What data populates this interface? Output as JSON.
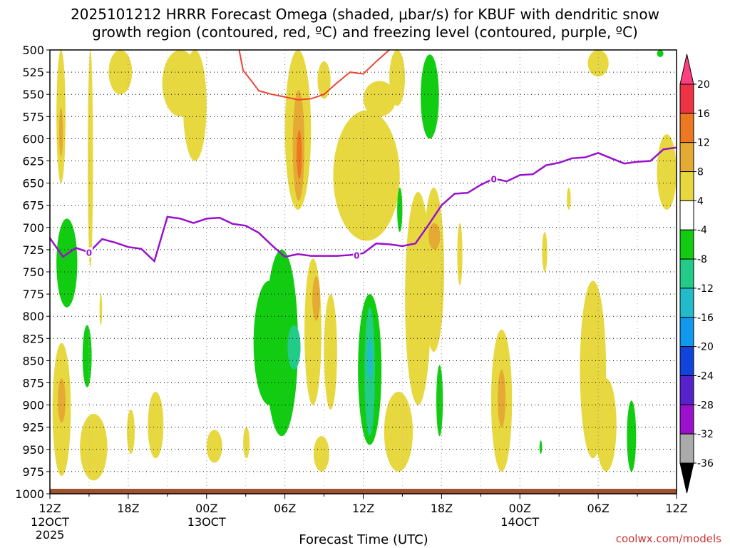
{
  "chart_data": {
    "type": "heatmap",
    "title_line1": "2025101212 HRRR Forecast Omega (shaded, μbar/s) for KBUF with dendritic snow",
    "title_line2": "growth region (contoured, red, ºC) and freezing level (contoured, purple, ºC)",
    "xlabel": "Forecast Time (UTC)",
    "credit": "coolwx.com/models",
    "x_range_hours": [
      0,
      48
    ],
    "y_range_hpa": [
      500,
      1000
    ],
    "y_ticks": [
      "500",
      "525",
      "550",
      "575",
      "600",
      "625",
      "650",
      "675",
      "700",
      "725",
      "750",
      "775",
      "800",
      "825",
      "850",
      "875",
      "900",
      "925",
      "950",
      "975",
      "1000"
    ],
    "x_ticks": [
      {
        "h": 0,
        "label": "12Z",
        "sub1": "12OCT",
        "sub2": "2025"
      },
      {
        "h": 6,
        "label": "18Z",
        "sub1": "",
        "sub2": ""
      },
      {
        "h": 12,
        "label": "00Z",
        "sub1": "13OCT",
        "sub2": ""
      },
      {
        "h": 18,
        "label": "06Z",
        "sub1": "",
        "sub2": ""
      },
      {
        "h": 24,
        "label": "12Z",
        "sub1": "",
        "sub2": ""
      },
      {
        "h": 30,
        "label": "18Z",
        "sub1": "",
        "sub2": ""
      },
      {
        "h": 36,
        "label": "00Z",
        "sub1": "14OCT",
        "sub2": ""
      },
      {
        "h": 42,
        "label": "06Z",
        "sub1": "",
        "sub2": ""
      },
      {
        "h": 48,
        "label": "12Z",
        "sub1": "",
        "sub2": ""
      }
    ],
    "colorbar": {
      "labels": [
        "20",
        "16",
        "12",
        "8",
        "4",
        "-4",
        "-8",
        "-12",
        "-16",
        "-20",
        "-24",
        "-28",
        "-32",
        "-36"
      ],
      "colors": [
        "#ff4080",
        "#ee3344",
        "#ee7722",
        "#e5aa33",
        "#e8d840",
        "#ffffff",
        "#11cc11",
        "#22cc88",
        "#22bbcc",
        "#1199ee",
        "#1144dd",
        "#5522cc",
        "#9911cc",
        "#aaaaaa",
        "#000000"
      ]
    },
    "colors": {
      "pos4": "#e8d840",
      "pos8": "#e5aa33",
      "pos12": "#ee7722",
      "neg4": "#11cc11",
      "neg8": "#22cc88",
      "neg12": "#22bbcc",
      "dgz": "#ee4433",
      "freezing": "#9911cc",
      "ground": "#a0522d"
    },
    "freezing_level_label": "0",
    "freezing_level": [
      {
        "h": 0,
        "p": 712
      },
      {
        "h": 1,
        "p": 733
      },
      {
        "h": 2,
        "p": 723
      },
      {
        "h": 3,
        "p": 728
      },
      {
        "h": 4,
        "p": 713
      },
      {
        "h": 5,
        "p": 717
      },
      {
        "h": 6,
        "p": 722
      },
      {
        "h": 7,
        "p": 724
      },
      {
        "h": 8,
        "p": 738
      },
      {
        "h": 9,
        "p": 688
      },
      {
        "h": 10,
        "p": 690
      },
      {
        "h": 11,
        "p": 695
      },
      {
        "h": 12,
        "p": 690
      },
      {
        "h": 13,
        "p": 689
      },
      {
        "h": 14,
        "p": 696
      },
      {
        "h": 15,
        "p": 698
      },
      {
        "h": 16,
        "p": 706
      },
      {
        "h": 17,
        "p": 720
      },
      {
        "h": 18,
        "p": 733
      },
      {
        "h": 19,
        "p": 730
      },
      {
        "h": 20,
        "p": 732
      },
      {
        "h": 21,
        "p": 732
      },
      {
        "h": 22,
        "p": 732
      },
      {
        "h": 23,
        "p": 731
      },
      {
        "h": 24,
        "p": 729
      },
      {
        "h": 25,
        "p": 718
      },
      {
        "h": 26,
        "p": 719
      },
      {
        "h": 27,
        "p": 721
      },
      {
        "h": 28,
        "p": 718
      },
      {
        "h": 29,
        "p": 697
      },
      {
        "h": 30,
        "p": 675
      },
      {
        "h": 31,
        "p": 662
      },
      {
        "h": 32,
        "p": 661
      },
      {
        "h": 33,
        "p": 652
      },
      {
        "h": 34,
        "p": 645
      },
      {
        "h": 35,
        "p": 648
      },
      {
        "h": 36,
        "p": 641
      },
      {
        "h": 37,
        "p": 640
      },
      {
        "h": 38,
        "p": 630
      },
      {
        "h": 39,
        "p": 627
      },
      {
        "h": 40,
        "p": 622
      },
      {
        "h": 41,
        "p": 621
      },
      {
        "h": 42,
        "p": 616
      },
      {
        "h": 43,
        "p": 622
      },
      {
        "h": 44,
        "p": 628
      },
      {
        "h": 45,
        "p": 626
      },
      {
        "h": 46,
        "p": 625
      },
      {
        "h": 47,
        "p": 612
      },
      {
        "h": 48,
        "p": 610
      }
    ],
    "dgz_contour": [
      {
        "h": 14.5,
        "p": 500
      },
      {
        "h": 14.8,
        "p": 523
      },
      {
        "h": 15.5,
        "p": 536
      },
      {
        "h": 16.0,
        "p": 546
      },
      {
        "h": 17.0,
        "p": 550
      },
      {
        "h": 18.0,
        "p": 553
      },
      {
        "h": 19.0,
        "p": 556
      },
      {
        "h": 20.0,
        "p": 555
      },
      {
        "h": 21.0,
        "p": 550
      },
      {
        "h": 22.0,
        "p": 537
      },
      {
        "h": 23.0,
        "p": 525
      },
      {
        "h": 24.0,
        "p": 527
      },
      {
        "h": 25.0,
        "p": 513
      },
      {
        "h": 26.0,
        "p": 500
      }
    ],
    "omega_regions": [
      {
        "level": 4,
        "h": [
          0.5,
          1.2
        ],
        "p": [
          500,
          650
        ]
      },
      {
        "level": 8,
        "h": [
          0.7,
          1.0
        ],
        "p": [
          565,
          620
        ]
      },
      {
        "level": 4,
        "h": [
          2.9,
          3.3
        ],
        "p": [
          500,
          745
        ]
      },
      {
        "level": 4,
        "h": [
          4.5,
          6.3
        ],
        "p": [
          500,
          550
        ]
      },
      {
        "level": 4,
        "h": [
          8.6,
          11.4
        ],
        "p": [
          500,
          575
        ]
      },
      {
        "level": 4,
        "h": [
          10.2,
          12.0
        ],
        "p": [
          500,
          625
        ]
      },
      {
        "level": 4,
        "h": [
          18.0,
          20.0
        ],
        "p": [
          500,
          680
        ]
      },
      {
        "level": 8,
        "h": [
          18.6,
          19.5
        ],
        "p": [
          545,
          670
        ]
      },
      {
        "level": 12,
        "h": [
          18.9,
          19.3
        ],
        "p": [
          590,
          645
        ]
      },
      {
        "level": 4,
        "h": [
          20.5,
          21.5
        ],
        "p": [
          513,
          555
        ]
      },
      {
        "level": 4,
        "h": [
          21.7,
          26.8
        ],
        "p": [
          568,
          715
        ]
      },
      {
        "level": 4,
        "h": [
          24.0,
          26.5
        ],
        "p": [
          535,
          575
        ]
      },
      {
        "level": 4,
        "h": [
          26.0,
          27.2
        ],
        "p": [
          500,
          563
        ]
      },
      {
        "level": -4,
        "h": [
          28.4,
          29.8
        ],
        "p": [
          505,
          600
        ]
      },
      {
        "level": -4,
        "h": [
          26.6,
          27.0
        ],
        "p": [
          655,
          705
        ]
      },
      {
        "level": 4,
        "h": [
          28.6,
          30.2
        ],
        "p": [
          655,
          840
        ]
      },
      {
        "level": 8,
        "h": [
          29.0,
          29.9
        ],
        "p": [
          695,
          725
        ]
      },
      {
        "level": 4,
        "h": [
          41.2,
          42.8
        ],
        "p": [
          500,
          530
        ]
      },
      {
        "level": -4,
        "h": [
          46.5,
          47.0
        ],
        "p": [
          500,
          508
        ]
      },
      {
        "level": 4,
        "h": [
          46.5,
          48.0
        ],
        "p": [
          595,
          680
        ]
      },
      {
        "level": 4,
        "h": [
          39.6,
          39.9
        ],
        "p": [
          655,
          680
        ]
      },
      {
        "level": -4,
        "h": [
          0.5,
          2.1
        ],
        "p": [
          690,
          790
        ]
      },
      {
        "level": 4,
        "h": [
          3.8,
          4.0
        ],
        "p": [
          775,
          810
        ]
      },
      {
        "level": 4,
        "h": [
          0.2,
          1.6
        ],
        "p": [
          830,
          980
        ]
      },
      {
        "level": 8,
        "h": [
          0.6,
          1.2
        ],
        "p": [
          870,
          920
        ]
      },
      {
        "level": -4,
        "h": [
          2.5,
          3.2
        ],
        "p": [
          810,
          880
        ]
      },
      {
        "level": 4,
        "h": [
          2.3,
          4.4
        ],
        "p": [
          910,
          985
        ]
      },
      {
        "level": 4,
        "h": [
          5.9,
          6.5
        ],
        "p": [
          905,
          955
        ]
      },
      {
        "level": 4,
        "h": [
          7.5,
          8.7
        ],
        "p": [
          885,
          960
        ]
      },
      {
        "level": 4,
        "h": [
          12.0,
          13.2
        ],
        "p": [
          928,
          965
        ]
      },
      {
        "level": 4,
        "h": [
          14.8,
          15.3
        ],
        "p": [
          925,
          960
        ]
      },
      {
        "level": -4,
        "h": [
          15.6,
          18.0
        ],
        "p": [
          760,
          900
        ]
      },
      {
        "level": -4,
        "h": [
          16.5,
          19.0
        ],
        "p": [
          725,
          935
        ]
      },
      {
        "level": -8,
        "h": [
          18.2,
          19.2
        ],
        "p": [
          810,
          860
        ]
      },
      {
        "level": 4,
        "h": [
          19.5,
          20.8
        ],
        "p": [
          735,
          900
        ]
      },
      {
        "level": 8,
        "h": [
          20.1,
          20.7
        ],
        "p": [
          755,
          805
        ]
      },
      {
        "level": 4,
        "h": [
          20.2,
          21.4
        ],
        "p": [
          935,
          975
        ]
      },
      {
        "level": 4,
        "h": [
          21.0,
          22.0
        ],
        "p": [
          775,
          905
        ]
      },
      {
        "level": -4,
        "h": [
          23.6,
          25.4
        ],
        "p": [
          775,
          945
        ]
      },
      {
        "level": -8,
        "h": [
          24.1,
          24.9
        ],
        "p": [
          790,
          935
        ]
      },
      {
        "level": -12,
        "h": [
          24.3,
          24.7
        ],
        "p": [
          825,
          870
        ]
      },
      {
        "level": 4,
        "h": [
          25.6,
          27.8
        ],
        "p": [
          885,
          975
        ]
      },
      {
        "level": 4,
        "h": [
          27.2,
          29.2
        ],
        "p": [
          660,
          900
        ]
      },
      {
        "level": 4,
        "h": [
          27.9,
          28.6
        ],
        "p": [
          800,
          860
        ]
      },
      {
        "level": -4,
        "h": [
          29.6,
          30.1
        ],
        "p": [
          855,
          935
        ]
      },
      {
        "level": 4,
        "h": [
          31.2,
          31.6
        ],
        "p": [
          695,
          765
        ]
      },
      {
        "level": 4,
        "h": [
          33.8,
          35.4
        ],
        "p": [
          815,
          975
        ]
      },
      {
        "level": 8,
        "h": [
          34.3,
          34.9
        ],
        "p": [
          860,
          925
        ]
      },
      {
        "level": -4,
        "h": [
          37.5,
          37.7
        ],
        "p": [
          940,
          955
        ]
      },
      {
        "level": 4,
        "h": [
          37.7,
          38.1
        ],
        "p": [
          705,
          750
        ]
      },
      {
        "level": 4,
        "h": [
          40.6,
          42.6
        ],
        "p": [
          760,
          960
        ]
      },
      {
        "level": 4,
        "h": [
          41.8,
          43.4
        ],
        "p": [
          870,
          975
        ]
      },
      {
        "level": -4,
        "h": [
          44.2,
          44.9
        ],
        "p": [
          895,
          975
        ]
      }
    ]
  }
}
